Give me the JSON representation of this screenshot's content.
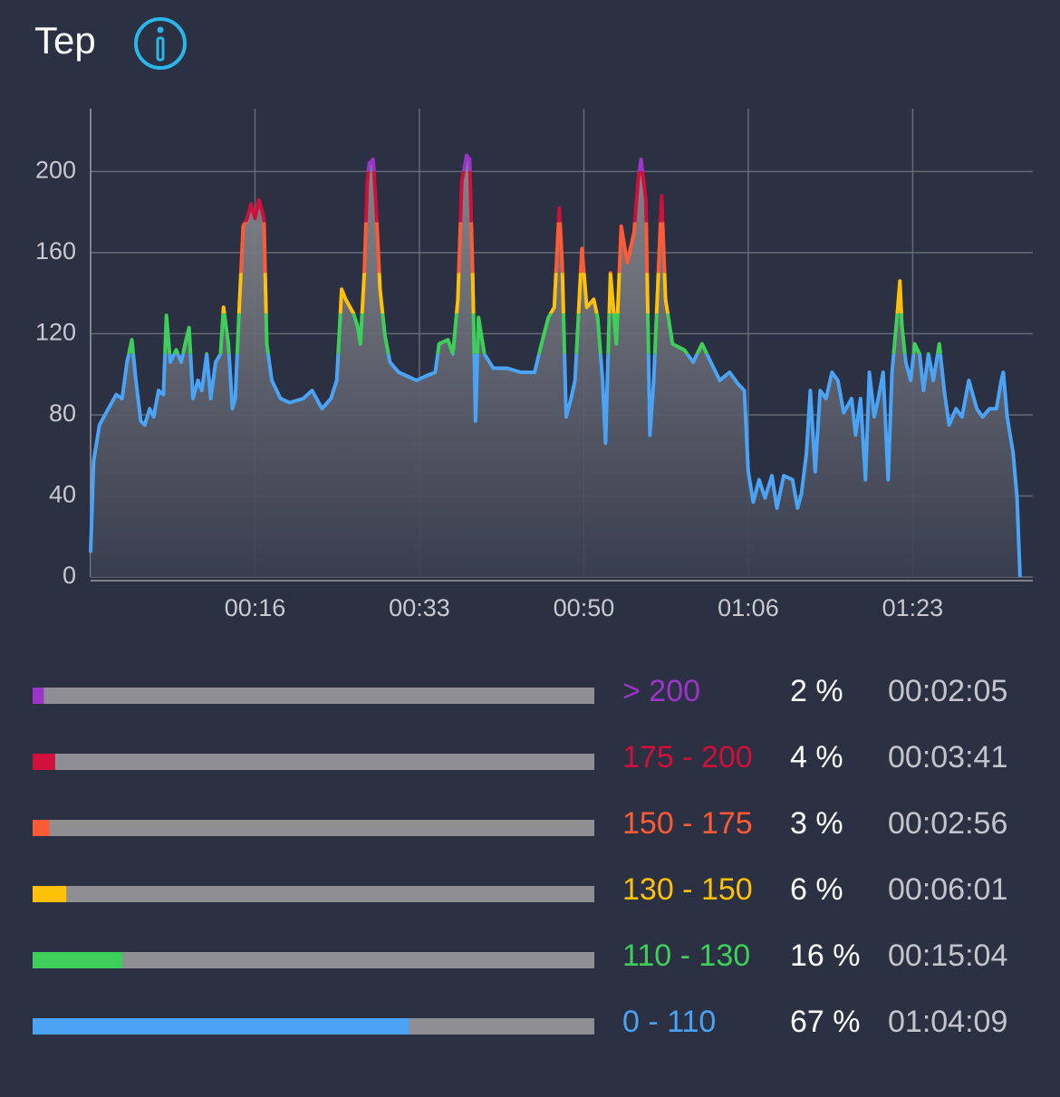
{
  "title": "Tep",
  "chart_data": {
    "type": "line",
    "x": [
      0,
      0.3,
      0.9,
      1.8,
      2.6,
      3.2,
      3.7,
      4.2,
      4.6,
      5.1,
      5.5,
      6.0,
      6.4,
      6.9,
      7.4,
      7.7,
      8.1,
      8.7,
      9.2,
      9.7,
      10.0,
      10.4,
      10.9,
      11.3,
      11.8,
      12.2,
      12.7,
      13.2,
      13.5,
      14.0,
      14.4,
      14.7,
      15.1,
      15.5,
      15.9,
      16.3,
      16.7,
      17.1,
      17.6,
      17.9,
      18.4,
      19.3,
      20.2,
      21.6,
      22.5,
      23.5,
      24.4,
      25.0,
      25.5,
      25.9,
      26.7,
      27.1,
      27.4,
      27.8,
      28.1,
      28.3,
      28.7,
      29.0,
      29.4,
      29.9,
      30.4,
      31.3,
      32.2,
      33.1,
      34.0,
      35.0,
      35.4,
      36.3,
      36.8,
      37.3,
      37.7,
      38.2,
      38.5,
      38.8,
      39.1,
      39.4,
      40.0,
      40.9,
      42.3,
      43.7,
      45.1,
      45.8,
      46.5,
      47.1,
      47.6,
      47.9,
      48.3,
      48.8,
      49.2,
      49.9,
      50.4,
      51.1,
      51.5,
      52.0,
      52.3,
      52.8,
      53.4,
      53.9,
      54.5,
      55.2,
      55.6,
      55.9,
      56.4,
      56.8,
      57.2,
      58.0,
      58.4,
      59.1,
      60.3,
      61.2,
      62.1,
      63.0,
      63.9,
      64.9,
      65.8,
      66.4,
      66.8,
      67.3,
      67.9,
      68.5,
      69.2,
      69.7,
      70.4,
      71.3,
      71.8,
      72.2,
      72.7,
      73.1,
      73.6,
      74.1,
      74.7,
      75.3,
      75.9,
      76.5,
      77.3,
      77.7,
      78.2,
      78.7,
      79.1,
      79.6,
      80.0,
      80.5,
      81.0,
      81.4,
      81.9,
      82.2,
      82.4,
      82.8,
      83.3,
      83.7,
      84.2,
      84.6,
      85.1,
      85.6,
      86.2,
      86.7,
      87.2,
      87.9,
      88.5,
      89.2,
      90.0,
      90.6,
      91.3,
      92.0,
      92.5,
      92.7,
      93.1,
      93.7,
      94.1,
      94.4
    ],
    "values": [
      12,
      57,
      75,
      83,
      90,
      88,
      106,
      117,
      97,
      77,
      75,
      83,
      79,
      92,
      90,
      129,
      106,
      112,
      106,
      117,
      123,
      88,
      97,
      92,
      110,
      88,
      106,
      110,
      133,
      115,
      83,
      88,
      133,
      173,
      177,
      184,
      177,
      186,
      177,
      115,
      97,
      88,
      86,
      88,
      92,
      83,
      88,
      97,
      142,
      137,
      130,
      124,
      115,
      150,
      195,
      204,
      206,
      182,
      142,
      119,
      106,
      101,
      99,
      97,
      99,
      101,
      115,
      117,
      110,
      137,
      195,
      208,
      206,
      150,
      77,
      128,
      110,
      103,
      103,
      101,
      101,
      115,
      128,
      133,
      182,
      155,
      79,
      88,
      97,
      162,
      133,
      137,
      128,
      97,
      66,
      150,
      115,
      173,
      155,
      170,
      195,
      206,
      186,
      70,
      97,
      188,
      137,
      115,
      112,
      106,
      115,
      106,
      97,
      101,
      95,
      92,
      52,
      37,
      48,
      39,
      50,
      34,
      50,
      48,
      34,
      41,
      61,
      92,
      52,
      92,
      88,
      101,
      97,
      81,
      88,
      70,
      88,
      48,
      101,
      79,
      88,
      101,
      48,
      101,
      128,
      146,
      124,
      106,
      97,
      115,
      110,
      92,
      110,
      97,
      115,
      92,
      75,
      83,
      79,
      97,
      83,
      79,
      83,
      83,
      97,
      101,
      79,
      61,
      39,
      0
    ],
    "xlim": [
      0,
      95.7
    ],
    "ylim": [
      0,
      231
    ],
    "xticks": [
      {
        "value": 16.7,
        "label": "00:16"
      },
      {
        "value": 33.4,
        "label": "00:33"
      },
      {
        "value": 50.1,
        "label": "00:50"
      },
      {
        "value": 66.8,
        "label": "01:06"
      },
      {
        "value": 83.5,
        "label": "01:23"
      }
    ],
    "yticks": [
      0,
      40,
      80,
      120,
      160,
      200
    ],
    "grid": true
  },
  "zones": [
    {
      "label": "> 200",
      "share": 2,
      "share_label": "2 %",
      "time": "00:02:05",
      "color": "#9b35c9"
    },
    {
      "label": "175 - 200",
      "share": 4,
      "share_label": "4 %",
      "time": "00:03:41",
      "color": "#d0103a"
    },
    {
      "label": "150 - 175",
      "share": 3,
      "share_label": "3 %",
      "time": "00:02:56",
      "color": "#ff5a36"
    },
    {
      "label": "130 - 150",
      "share": 6,
      "share_label": "6 %",
      "time": "00:06:01",
      "color": "#ffc107"
    },
    {
      "label": "110 - 130",
      "share": 16,
      "share_label": "16 %",
      "time": "00:15:04",
      "color": "#3ecf5a"
    },
    {
      "label": "0 - 110",
      "share": 67,
      "share_label": "67 %",
      "time": "01:04:09",
      "color": "#4aa3f5"
    }
  ]
}
